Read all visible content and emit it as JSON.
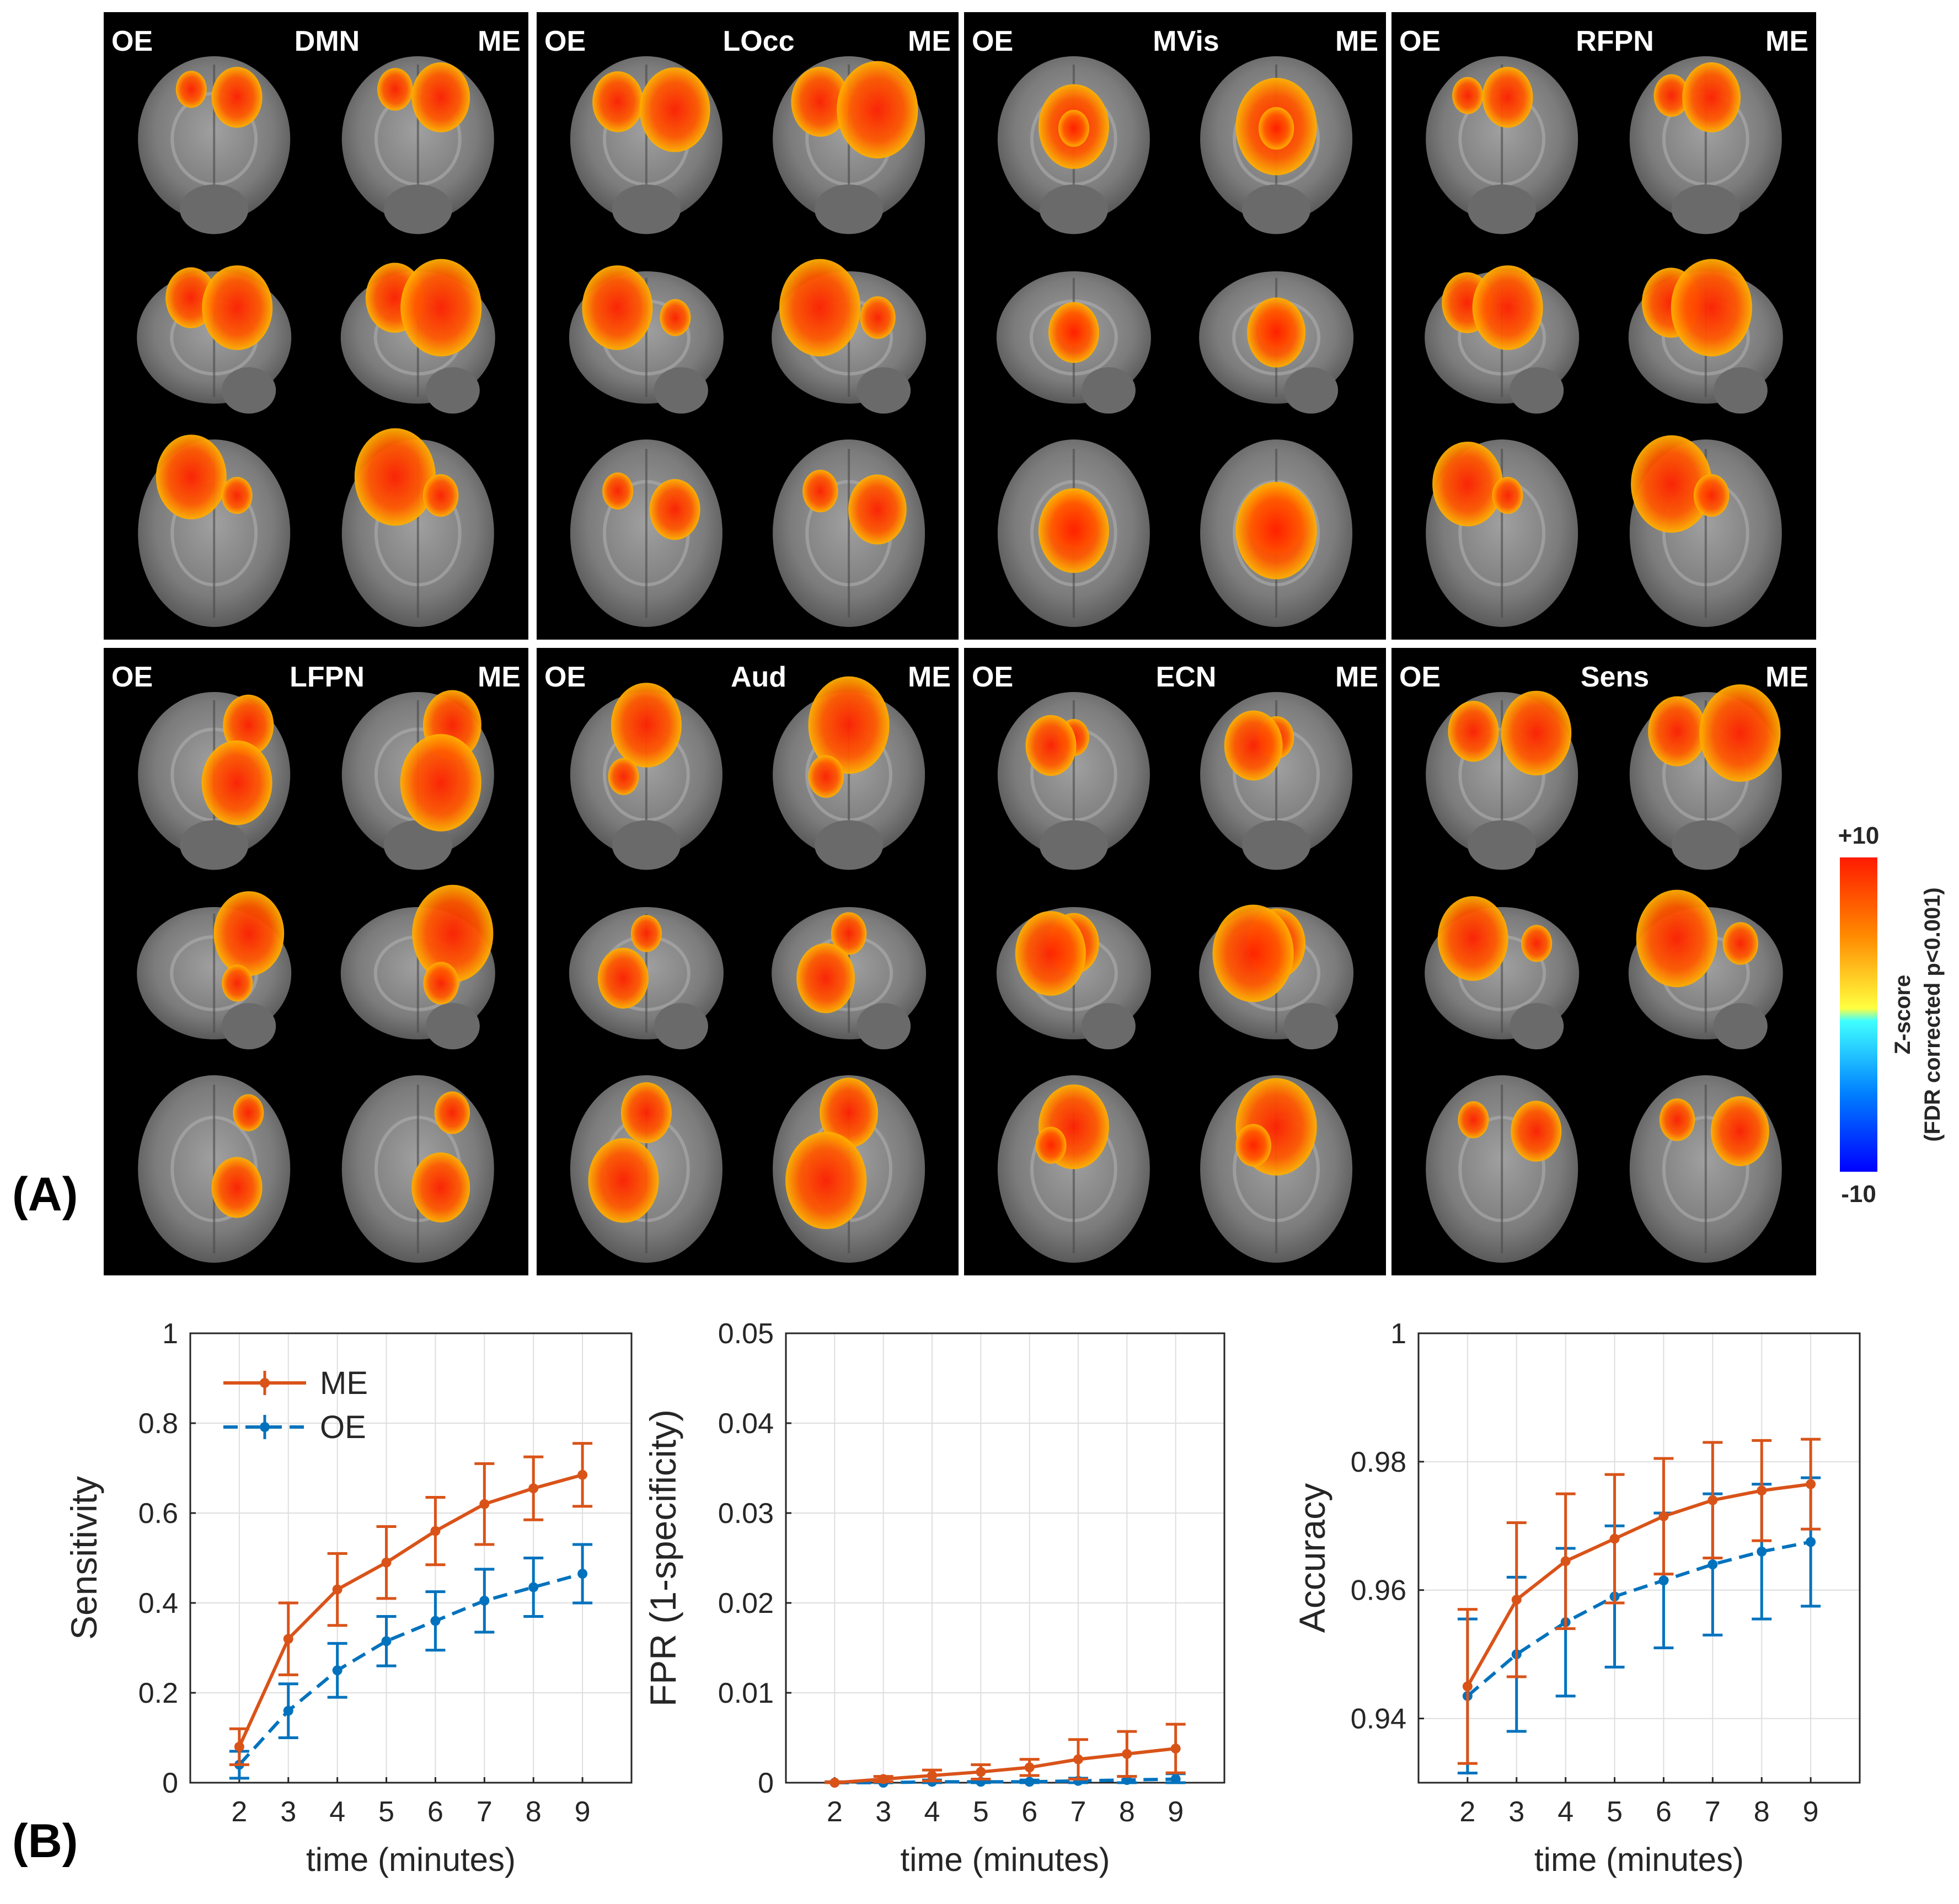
{
  "panel_labels": {
    "a": "(A)",
    "b": "(B)"
  },
  "brain_maps": {
    "left_tag": "OE",
    "right_tag": "ME",
    "networks": [
      "DMN",
      "LOcc",
      "MVis",
      "RFPN",
      "LFPN",
      "Aud",
      "ECN",
      "Sens"
    ],
    "views": [
      "coronal",
      "sagittal",
      "axial"
    ]
  },
  "colorbar": {
    "max_label": "+10",
    "min_label": "-10",
    "title": "Z-score",
    "subtitle": "(FDR corrected p<0.001)",
    "colors": {
      "high": "#ff1a00",
      "mid_pos": "#ffff40",
      "mid_neg": "#40ffff",
      "low": "#0000ff"
    }
  },
  "legend": {
    "me": "ME",
    "oe": "OE"
  },
  "colors": {
    "me": "#d95319",
    "oe": "#0072bd",
    "activation": "#ff5a00"
  },
  "chart_data": [
    {
      "type": "line",
      "title": "",
      "xlabel": "time (minutes)",
      "ylabel": "Sensitivity",
      "x": [
        2,
        3,
        4,
        5,
        6,
        7,
        8,
        9
      ],
      "xlim": [
        1,
        10
      ],
      "ylim": [
        0,
        1
      ],
      "yticks": [
        0,
        0.2,
        0.4,
        0.6,
        0.8,
        1
      ],
      "ytick_labels": [
        "0",
        "0.2",
        "0.4",
        "0.6",
        "0.8",
        "1"
      ],
      "grid": true,
      "legend": "top-left",
      "series": [
        {
          "name": "ME",
          "values": [
            0.08,
            0.32,
            0.43,
            0.49,
            0.56,
            0.62,
            0.655,
            0.685
          ],
          "err": [
            0.04,
            0.08,
            0.08,
            0.08,
            0.075,
            0.09,
            0.07,
            0.07
          ]
        },
        {
          "name": "OE",
          "values": [
            0.04,
            0.16,
            0.25,
            0.315,
            0.36,
            0.405,
            0.435,
            0.465
          ],
          "err": [
            0.03,
            0.06,
            0.06,
            0.055,
            0.065,
            0.07,
            0.065,
            0.065
          ]
        }
      ]
    },
    {
      "type": "line",
      "title": "",
      "xlabel": "time (minutes)",
      "ylabel": "FPR (1-specificity)",
      "x": [
        2,
        3,
        4,
        5,
        6,
        7,
        8,
        9
      ],
      "xlim": [
        1,
        10
      ],
      "ylim": [
        0,
        0.05
      ],
      "yticks": [
        0,
        0.01,
        0.02,
        0.03,
        0.04,
        0.05
      ],
      "ytick_labels": [
        "0",
        "0.01",
        "0.02",
        "0.03",
        "0.04",
        "0.05"
      ],
      "grid": true,
      "series": [
        {
          "name": "ME",
          "values": [
            0.0,
            0.0004,
            0.0008,
            0.0012,
            0.0017,
            0.0026,
            0.0032,
            0.0038
          ],
          "err": [
            0.0001,
            0.0003,
            0.0006,
            0.0008,
            0.0009,
            0.0022,
            0.0025,
            0.0027
          ]
        },
        {
          "name": "OE",
          "values": [
            0.0,
            0.0,
            0.0001,
            0.0001,
            0.0001,
            0.0002,
            0.0003,
            0.0004
          ],
          "err": [
            0.0001,
            0.0001,
            0.0002,
            0.0002,
            0.0002,
            0.0003,
            0.0004,
            0.0006
          ]
        }
      ]
    },
    {
      "type": "line",
      "title": "",
      "xlabel": "time (minutes)",
      "ylabel": "Accuracy",
      "x": [
        2,
        3,
        4,
        5,
        6,
        7,
        8,
        9
      ],
      "xlim": [
        1,
        10
      ],
      "ylim": [
        0.93,
        1
      ],
      "yticks": [
        0.94,
        0.96,
        0.98,
        1
      ],
      "ytick_labels": [
        "0.94",
        "0.96",
        "0.98",
        "1"
      ],
      "grid": true,
      "series": [
        {
          "name": "ME",
          "values": [
            0.945,
            0.9585,
            0.9645,
            0.968,
            0.9715,
            0.974,
            0.9755,
            0.9765
          ],
          "err": [
            0.012,
            0.012,
            0.0105,
            0.01,
            0.009,
            0.009,
            0.0078,
            0.007
          ]
        },
        {
          "name": "OE",
          "values": [
            0.9435,
            0.95,
            0.955,
            0.959,
            0.9615,
            0.964,
            0.966,
            0.9675
          ],
          "err": [
            0.012,
            0.012,
            0.0115,
            0.011,
            0.0105,
            0.011,
            0.0105,
            0.01
          ]
        }
      ]
    }
  ]
}
